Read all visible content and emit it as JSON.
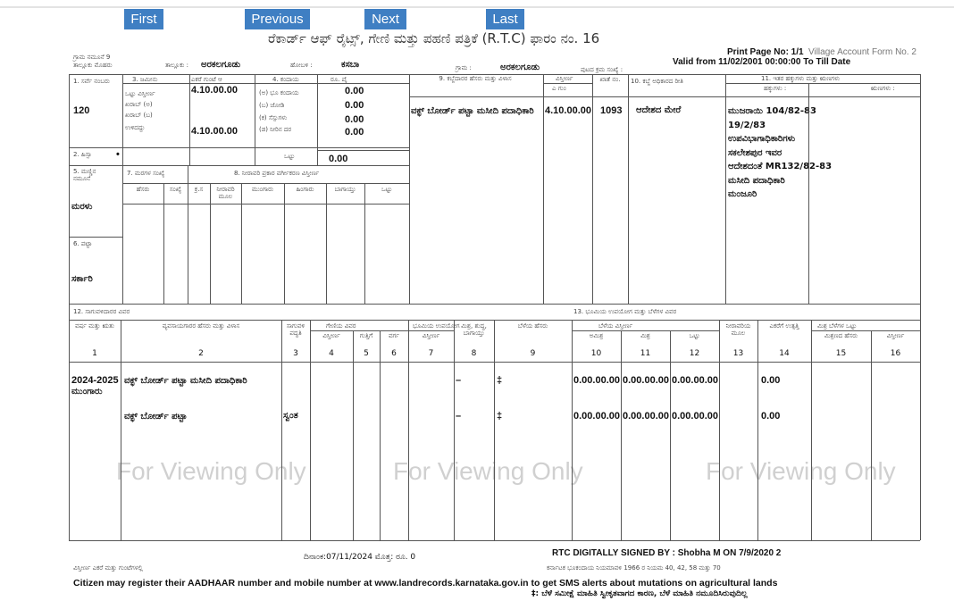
{
  "nav": {
    "first": "First",
    "previous": "Previous",
    "next": "Next",
    "last": "Last"
  },
  "header": {
    "title": "ರೆಕಾರ್ಡ್ ಆಫ್ ರೈಟ್ಸ್, ಗೇಣಿ ಮತ್ತು ಪಹಣಿ ಪತ್ರಿಕೆ (R.T.C) ಫಾರಂ ನಂ. 16",
    "print_page": "Print Page No: 1/1",
    "form_no": "Village Account Form No. 2",
    "valid": "Valid from 11/02/2001 00:00:00 To Till Date",
    "village_form": "ಗ್ರಾಮ ನಮೂನೆ 9",
    "taluk_label_small": "ತಾಲ್ಲೂಕು ಮೊಹರು",
    "taluk_label": "ತಾಲ್ಲೂಕು :",
    "taluk": "ಅರಕಲಗೂಡು",
    "hobli_label": "ಹೋಬಳಿ :",
    "hobli": "ಕಸಬಾ",
    "village_label": "ಗ್ರಾಮ :",
    "village": "ಅರಕಲಗೂಡು",
    "page_label": "ಪುಟದ ಕ್ರಮ ಸಂಖ್ಯೆ :"
  },
  "upper": {
    "survey_label": "1. ಸರ್ವೆ ನಂಬರು",
    "survey_no": "120",
    "survey_dot": "•",
    "col3": "3. ಜಮೀನು",
    "col3_units": "ಎಕರೆ  ಗುಂಟೆ  ಆ",
    "area_rows": [
      "ಒಟ್ಟು ವಿಸ್ತೀರ್ಣ",
      "ಖರಾಬ್ (ಅ)",
      "ಖರಾಬ್ (ಬ)",
      "ಉಳಿದದ್ದು"
    ],
    "area_total": "4.10.00.00",
    "area_remaining": "4.10.00.00",
    "col4": "4. ಕಂದಾಯ",
    "col4_units": "ರೂ.     ಪೈ",
    "tax_rows": [
      "(ಅ) ಭೂ ಕಂದಾಯ",
      "(ಬ) ಜೋಡಿ",
      "(ಕ) ಸೆಸ್ಸುಗಳು",
      "(ಡ) ನೀರಿನ ದರ"
    ],
    "tax_values": [
      "0.00",
      "0.00",
      "0.00",
      "0.00"
    ],
    "total_label": "ಒಟ್ಟು",
    "total_value": "0.00",
    "hissa_label": "2. ಹಿಸ್ಸಾ",
    "hissa_value": "•",
    "soil_label": "5. ಮಣ್ಣಿನ ನಮೂನೆ",
    "soil_value": "ಮರಳು",
    "patta_label": "6. ಪಟ್ಟಾ",
    "patta_value": "ಸರ್ಕಾರಿ",
    "col7": "7. ಮರಗಳ ಸಂಖ್ಯೆ",
    "col8": "8. ನೀರಾವರಿ ಪ್ರಕಾರ ವರ್ಗೀಕರಣ ವಿಸ್ತೀರ್ಣ",
    "sub_cols": [
      "ಹೆಸರು",
      "ಸಂಖ್ಯೆ",
      "ಕ್ರ.ಸ",
      "ನೀರಾವರಿ ಮೂಲ",
      "ಮುಂಗಾರು",
      "ಹಿಂಗಾರು",
      "ಬಾಗಾಯ್ತು",
      "ಒಟ್ಟು"
    ],
    "col9": "9. ಕಬ್ಜೆದಾರರ ಹೆಸರು ಮತ್ತು ವಿಳಾಸ",
    "col9_area": "ವಿಸ್ತೀರ್ಣ",
    "col9_area_units": "ಎ   ಗುಂ",
    "khata": "ಖಾತೆ ನಂ.",
    "col10": "10. ಕಬ್ಜೆ ಅಧಿಕಾರದ ರೀತಿ",
    "col11": "11. ಇತರ ಹಕ್ಕುಗಳು ಮತ್ತು ಋಣಗಳು",
    "rights": "ಹಕ್ಕುಗಳು :",
    "liabilities": "ಋಣಗಳು :",
    "owner": "ವಕ್ಫ್ ಬೋರ್ಡ್ ಪಟ್ಟಾ ಮಸೀದಿ ಪದಾಧಿಕಾರಿ",
    "owner_area": "4.10.00.00",
    "owner_khata": "1093",
    "tenure": "ಆದೇಶದ ಮೇರೆ",
    "rights_lines": [
      "ಮುಜರಾಯಿ 104/82-83",
      "19/2/83",
      "ಉಪವಿಭಾಗಾಧಿಕಾರಿಗಳು",
      "ಸಕಲೇಶಪುರ ಇವರ",
      "ಆದೇಶದಂತೆ MR132/82-83",
      "ಮಸೀದಿ ಪದಾಧಿಕಾರಿ",
      "ಮಂಜೂರಿ"
    ]
  },
  "lower": {
    "title": "12. ಸಾಗುವಳಿದಾರರ ವಿವರ",
    "title2": "13. ಭೂಮಿಯ ಉಪಯೋಗ ಮತ್ತು ಬೆಳೆಗಳ ವಿವರ",
    "watermark": "For Viewing Only",
    "cols": [
      {
        "t": "ವರ್ಷ ಮತ್ತು ಋತು",
        "n": "1"
      },
      {
        "t": "ವ್ಯವಸಾಯಗಾರರ ಹೆಸರು ಮತ್ತು ವಿಳಾಸ",
        "n": "2"
      },
      {
        "t": "ಸಾಗುವಳಿ ಪದ್ಧತಿ",
        "n": "3"
      },
      {
        "t": "ವಿಸ್ತೀರ್ಣ",
        "n": "4"
      },
      {
        "t": "ಗುತ್ತಿಗೆ",
        "n": "5"
      },
      {
        "t": "ವರ್ಗ",
        "n": "6"
      },
      {
        "t": "ವಿಸ್ತೀರ್ಣ",
        "n": "7"
      },
      {
        "t": "ಮಿಶ್ರ, ಶುದ್ಧ, ಬಾಗಾಯ್ತು",
        "n": "8"
      },
      {
        "t": "ಬೆಳೆಯ ಹೆಸರು",
        "n": "9"
      },
      {
        "t": "ಅಮಿಶ್ರ",
        "n": "10"
      },
      {
        "t": "ಮಿಶ್ರ",
        "n": "11"
      },
      {
        "t": "ಒಟ್ಟು",
        "n": "12"
      },
      {
        "t": "ನೀರಾವರಿಯ ಮೂಲ",
        "n": "13"
      },
      {
        "t": "ಎಕರೆಗೆ ಉತ್ಪತ್ತಿ",
        "n": "14"
      },
      {
        "t": "ಮಿಶ್ರಣದ ಹೆಸರು",
        "n": "15"
      },
      {
        "t": "ವಿಸ್ತೀರ್ಣ",
        "n": "16"
      }
    ],
    "group_tenancy": "ಗೇಣಿಯ ವಿವರ",
    "group_land": "ಭೂಮಿಯ ಉಪಯೋಗ",
    "group_crop": "ಬೆಳೆಯ ವಿಸ್ತೀರ್ಣ",
    "group_mixed": "ಮಿಶ್ರ ಬೆಳೆಗಳ ಒಟ್ಟು",
    "rows": [
      {
        "year": "2024-2025",
        "season": "ಮುಂಗಾರು",
        "name": "ವಕ್ಫ್ ಬೋರ್ಡ್ ಪಟ್ಟಾ ಮಸೀದಿ ಪದಾಧಿಕಾರಿ",
        "method": "",
        "dash": "–",
        "crop": "‡",
        "c10": "0.00.00.00",
        "c11": "0.00.00.00",
        "c12": "0.00.00.00",
        "c14": "0.00"
      },
      {
        "year": "",
        "season": "",
        "name": "ವಕ್ಫ್ ಬೋರ್ಡ್ ಪಟ್ಟಾ",
        "method": "ಸ್ವಂತ",
        "dash": "–",
        "crop": "‡",
        "c10": "0.00.00.00",
        "c11": "0.00.00.00",
        "c12": "0.00.00.00",
        "c14": "0.00"
      }
    ]
  },
  "footer": {
    "date": "ದಿನಾಂಕ:07/11/2024  ಮೊತ್ತ: ರೂ. 0",
    "signed": "RTC DIGITALLY SIGNED BY : Shobha M ON 7/9/2020 2",
    "left_note": "ವಿಸ್ತೀರ್ಣ ಎಕರೆ ಮತ್ತು ಗುಂಟೆಗಳಲ್ಲಿ",
    "act_note": "ಕರ್ನಾಟಕ ಭೂಕಂದಾಯ ನಿಯಮಾವಳಿ 1966 ರ ನಿಯಮ 40, 42, 58 ಮತ್ತು 70",
    "citizen": "Citizen may register their AADHAAR number and mobile number at www.landrecords.karnataka.gov.in to get SMS alerts about mutations on agricultural lands",
    "crop_note": "‡: ಬೆಳೆ ಸಮೀಕ್ಷೆ ಮಾಹಿತಿ ಸ್ವೀಕೃತವಾಗದ ಕಾರಣ, ಬೆಳೆ ಮಾಹಿತಿ ನಮೂದಿಸಿರುವುದಿಲ್ಲ"
  }
}
